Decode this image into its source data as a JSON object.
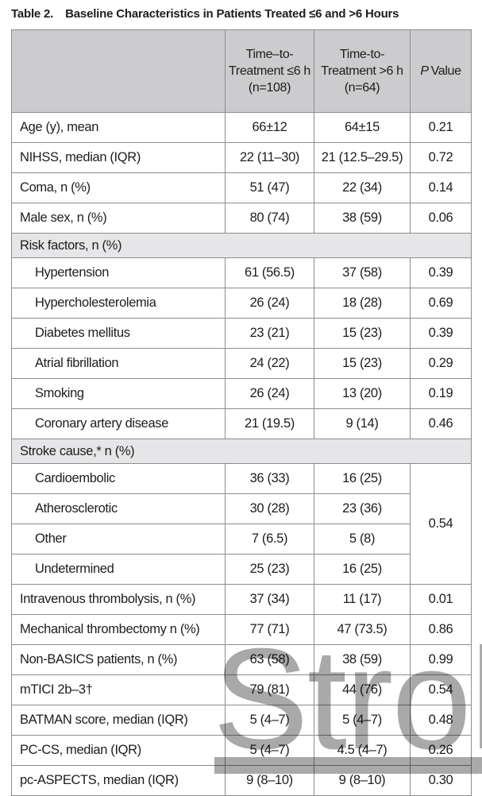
{
  "page": {
    "title_label": "Table 2.",
    "title_text": "Baseline Characteristics in Patients Treated ≤6 and >6 Hours"
  },
  "table": {
    "header": {
      "col_label": "",
      "col_le6": "Time–to-Treatment ≤6 h (n=108)",
      "col_gt6": "Time-to-Treatment >6 h (n=64)",
      "col_p_italic": "P",
      "col_p_rest": "Value"
    },
    "rows": [
      {
        "type": "data",
        "indent": 0,
        "label": "Age (y), mean",
        "le6": "66±12",
        "gt6": "64±15",
        "p": "0.21"
      },
      {
        "type": "data",
        "indent": 0,
        "label": "NIHSS, median (IQR)",
        "le6": "22 (11–30)",
        "gt6": "21 (12.5–29.5)",
        "p": "0.72"
      },
      {
        "type": "data",
        "indent": 0,
        "label": "Coma, n (%)",
        "le6": "51 (47)",
        "gt6": "22 (34)",
        "p": "0.14"
      },
      {
        "type": "data",
        "indent": 0,
        "label": "Male sex, n (%)",
        "le6": "80 (74)",
        "gt6": "38 (59)",
        "p": "0.06"
      },
      {
        "type": "section",
        "label": "Risk factors, n (%)"
      },
      {
        "type": "data",
        "indent": 1,
        "label": "Hypertension",
        "le6": "61 (56.5)",
        "gt6": "37 (58)",
        "p": "0.39"
      },
      {
        "type": "data",
        "indent": 1,
        "label": "Hypercholesterolemia",
        "le6": "26 (24)",
        "gt6": "18 (28)",
        "p": "0.69"
      },
      {
        "type": "data",
        "indent": 1,
        "label": "Diabetes mellitus",
        "le6": "23 (21)",
        "gt6": "15 (23)",
        "p": "0.39"
      },
      {
        "type": "data",
        "indent": 1,
        "label": "Atrial fibrillation",
        "le6": "24 (22)",
        "gt6": "15 (23)",
        "p": "0.29"
      },
      {
        "type": "data",
        "indent": 1,
        "label": "Smoking",
        "le6": "26 (24)",
        "gt6": "13 (20)",
        "p": "0.19"
      },
      {
        "type": "data",
        "indent": 1,
        "label": "Coronary artery disease",
        "le6": "21 (19.5)",
        "gt6": "9 (14)",
        "p": "0.46"
      },
      {
        "type": "section",
        "label": "Stroke cause,* n (%)"
      },
      {
        "type": "data",
        "indent": 1,
        "label": "Cardioembolic",
        "le6": "36 (33)",
        "gt6": "16 (25)",
        "p": "0.54",
        "p_rowspan": 4
      },
      {
        "type": "data",
        "indent": 1,
        "label": "Atherosclerotic",
        "le6": "30 (28)",
        "gt6": "23 (36)",
        "p": null
      },
      {
        "type": "data",
        "indent": 1,
        "label": "Other",
        "le6": "7 (6.5)",
        "gt6": "5 (8)",
        "p": null
      },
      {
        "type": "data",
        "indent": 1,
        "label": "Undetermined",
        "le6": "25 (23)",
        "gt6": "16 (25)",
        "p": null
      },
      {
        "type": "data",
        "indent": 0,
        "label": "Intravenous thrombolysis, n (%)",
        "le6": "37 (34)",
        "gt6": "11 (17)",
        "p": "0.01"
      },
      {
        "type": "data",
        "indent": 0,
        "label": "Mechanical thrombectomy n (%)",
        "le6": "77 (71)",
        "gt6": "47 (73.5)",
        "p": "0.86"
      },
      {
        "type": "data",
        "indent": 0,
        "label": "Non-BASICS patients, n (%)",
        "le6": "63 (58)",
        "gt6": "38 (59)",
        "p": "0.99"
      },
      {
        "type": "data",
        "indent": 0,
        "label": "mTICI 2b–3†",
        "le6": "79 (81)",
        "gt6": "44 (76)",
        "p": "0.54"
      },
      {
        "type": "data",
        "indent": 0,
        "label": "BATMAN score, median (IQR)",
        "le6": "5 (4–7)",
        "gt6": "5 (4–7)",
        "p": "0.48"
      },
      {
        "type": "data",
        "indent": 0,
        "label": "PC-CS, median (IQR)",
        "le6": "5 (4–7)",
        "gt6": "4.5 (4–7)",
        "p": "0.26"
      },
      {
        "type": "data",
        "indent": 0,
        "label": "pc-ASPECTS, median (IQR)",
        "le6": "9 (8–10)",
        "gt6": "9 (8–10)",
        "p": "0.30"
      }
    ]
  },
  "watermark": {
    "text": "Stroke",
    "color": "#a9a9a9"
  },
  "colors": {
    "header_bg": "#cccbcd",
    "section_bg": "#e6e5e7",
    "border": "#8d8d8d",
    "text": "#1d1d1d"
  }
}
